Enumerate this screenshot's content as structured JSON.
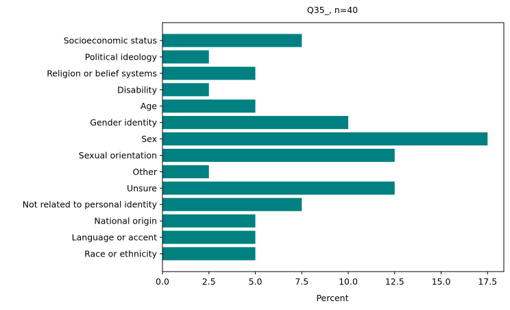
{
  "chart_data": {
    "type": "bar",
    "orientation": "horizontal",
    "title": "Q35_, n=40",
    "xlabel": "Percent",
    "ylabel": "",
    "categories": [
      "Race or ethnicity",
      "Language or accent",
      "National origin",
      "Not related to personal identity",
      "Unsure",
      "Other",
      "Sexual orientation",
      "Sex",
      "Gender identity",
      "Age",
      "Disability",
      "Religion or belief systems",
      "Political ideology",
      "Socioeconomic status"
    ],
    "values": [
      5,
      5,
      5,
      7.5,
      12.5,
      2.5,
      12.5,
      17.5,
      10,
      5,
      2.5,
      5,
      2.5,
      7.5
    ],
    "xlim": [
      0,
      18.375
    ],
    "xticks": [
      0,
      2.5,
      5,
      7.5,
      10,
      12.5,
      15,
      17.5
    ],
    "xtick_labels": [
      "0.0",
      "2.5",
      "5.0",
      "7.5",
      "10.0",
      "12.5",
      "15.0",
      "17.5"
    ],
    "bar_color": "#008080",
    "grid": false,
    "legend": "none"
  }
}
